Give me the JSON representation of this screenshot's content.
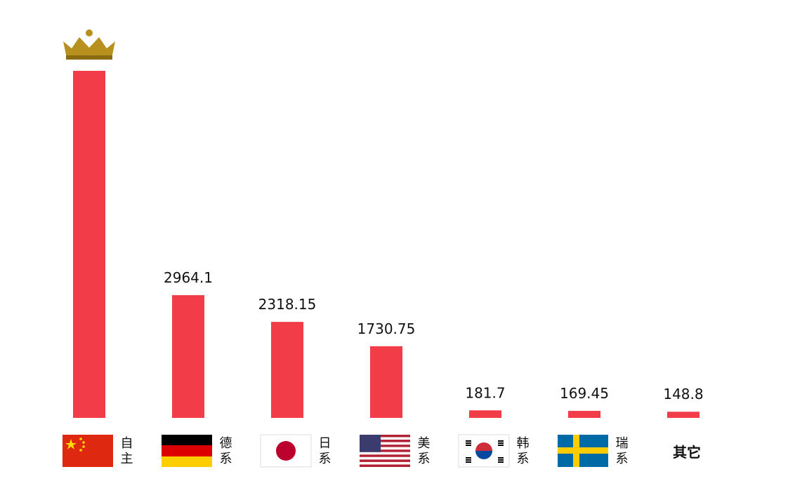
{
  "chart_data": {
    "type": "bar",
    "categories": [
      "自主",
      "德系",
      "日系",
      "美系",
      "韩系",
      "瑞系",
      "其它"
    ],
    "values": [
      8380,
      2964.1,
      2318.15,
      1730.75,
      181.7,
      169.45,
      148.8
    ],
    "color": "#f23c48"
  }
}
